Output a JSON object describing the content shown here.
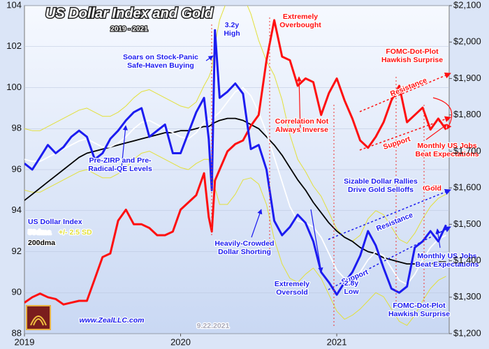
{
  "chart_data": {
    "type": "line",
    "title": "US Dollar Index and Gold",
    "subtitle": "2019 - 2021",
    "xlim": [
      2019,
      2021.72
    ],
    "xticks": [
      2019,
      2020,
      2021
    ],
    "ylim": [
      88,
      104
    ],
    "yticks": [
      88,
      90,
      92,
      94,
      96,
      98,
      100,
      102,
      104
    ],
    "y2lim": [
      1200,
      2100
    ],
    "y2ticks": [
      {
        "value": 1200,
        "label": "$1,200"
      },
      {
        "value": 1300,
        "label": "$1,300"
      },
      {
        "value": 1400,
        "label": "$1,400"
      },
      {
        "value": 1500,
        "label": "$1,500"
      },
      {
        "value": 1600,
        "label": "$1,600"
      },
      {
        "value": 1700,
        "label": "$1,700"
      },
      {
        "value": 1800,
        "label": "$1,800"
      },
      {
        "value": 1900,
        "label": "$1,900"
      },
      {
        "value": 2000,
        "label": "$2,000"
      },
      {
        "value": 2100,
        "label": "$2,100"
      }
    ],
    "x": [
      2019.0,
      2019.05,
      2019.1,
      2019.15,
      2019.2,
      2019.25,
      2019.3,
      2019.35,
      2019.4,
      2019.45,
      2019.5,
      2019.55,
      2019.6,
      2019.65,
      2019.7,
      2019.75,
      2019.8,
      2019.85,
      2019.9,
      2019.95,
      2020.0,
      2020.05,
      2020.1,
      2020.15,
      2020.18,
      2020.2,
      2020.22,
      2020.25,
      2020.3,
      2020.35,
      2020.4,
      2020.45,
      2020.5,
      2020.55,
      2020.6,
      2020.65,
      2020.7,
      2020.75,
      2020.8,
      2020.85,
      2020.9,
      2020.95,
      2021.0,
      2021.05,
      2021.1,
      2021.15,
      2021.2,
      2021.25,
      2021.3,
      2021.35,
      2021.4,
      2021.45,
      2021.5,
      2021.55,
      2021.6,
      2021.65,
      2021.7
    ],
    "series": [
      {
        "name": "+/- 2.5 SD",
        "color": "#e3e03a",
        "upper": [
          98.0,
          97.9,
          97.9,
          98.1,
          98.3,
          98.5,
          98.7,
          98.9,
          99.0,
          98.8,
          98.6,
          98.6,
          98.8,
          99.1,
          99.5,
          99.8,
          99.9,
          99.7,
          99.5,
          99.3,
          99.1,
          99.0,
          99.3,
          100.1,
          100.5,
          100.9,
          102.1,
          103.3,
          104.3,
          104.8,
          104.5,
          103.6,
          102.3,
          101.3,
          100.6,
          99.4,
          97.7,
          96.5,
          95.9,
          95.2,
          94.7,
          93.9,
          93.1,
          92.7,
          92.5,
          92.8,
          93.6,
          94.0,
          93.8,
          93.2,
          92.6,
          92.4,
          92.9,
          93.6,
          94.2,
          94.6,
          94.8
        ],
        "lower": [
          95.0,
          94.9,
          94.9,
          95.1,
          95.3,
          95.5,
          95.7,
          95.9,
          96.0,
          95.8,
          95.6,
          95.6,
          95.8,
          96.1,
          96.5,
          96.8,
          96.9,
          96.7,
          96.5,
          96.3,
          96.1,
          96.0,
          96.3,
          96.5,
          96.5,
          95.9,
          95.1,
          94.3,
          94.3,
          94.8,
          95.5,
          95.6,
          95.3,
          94.3,
          92.6,
          91.4,
          90.7,
          90.5,
          90.9,
          91.2,
          90.7,
          89.9,
          89.1,
          88.7,
          88.9,
          89.2,
          89.6,
          90.0,
          89.8,
          89.2,
          88.6,
          88.4,
          88.9,
          89.6,
          90.2,
          90.6,
          90.8
        ]
      },
      {
        "name": "200dma",
        "color": "#000000",
        "values": [
          94.5,
          94.8,
          95.1,
          95.4,
          95.7,
          96.0,
          96.3,
          96.6,
          96.8,
          96.9,
          97.0,
          97.1,
          97.2,
          97.3,
          97.4,
          97.5,
          97.6,
          97.7,
          97.8,
          97.8,
          97.9,
          97.9,
          98.0,
          98.1,
          98.1,
          98.2,
          98.3,
          98.4,
          98.5,
          98.5,
          98.4,
          98.2,
          98.0,
          97.6,
          97.2,
          96.7,
          96.1,
          95.5,
          95.0,
          94.4,
          93.9,
          93.4,
          93.0,
          92.7,
          92.5,
          92.2,
          92.0,
          91.9,
          91.7,
          91.6,
          91.5,
          91.4,
          91.4,
          91.4,
          91.4,
          91.5,
          91.5
        ]
      },
      {
        "name": "50dma",
        "color": "#ffffff",
        "values": [
          96.5,
          96.4,
          96.4,
          96.6,
          96.8,
          97.0,
          97.2,
          97.4,
          97.5,
          97.3,
          97.1,
          97.1,
          97.3,
          97.6,
          98.0,
          98.3,
          98.4,
          98.2,
          98.0,
          97.8,
          97.6,
          97.5,
          97.8,
          98.3,
          98.5,
          98.4,
          98.6,
          98.8,
          99.3,
          99.8,
          100.0,
          99.6,
          98.8,
          97.8,
          96.6,
          95.4,
          94.2,
          93.5,
          93.4,
          93.2,
          92.7,
          91.9,
          91.1,
          90.7,
          90.7,
          91.0,
          91.6,
          92.0,
          91.8,
          91.2,
          90.6,
          90.4,
          90.9,
          91.6,
          92.2,
          92.6,
          92.8
        ]
      },
      {
        "name": "Gold",
        "color": "#ff1010",
        "axis": "y2",
        "values": [
          1285,
          1300,
          1310,
          1300,
          1295,
          1280,
          1285,
          1290,
          1290,
          1350,
          1410,
          1420,
          1510,
          1540,
          1500,
          1500,
          1490,
          1470,
          1470,
          1480,
          1540,
          1560,
          1580,
          1640,
          1520,
          1480,
          1620,
          1650,
          1700,
          1720,
          1730,
          1770,
          1800,
          1950,
          2060,
          1960,
          1950,
          1880,
          1900,
          1890,
          1800,
          1860,
          1900,
          1840,
          1790,
          1730,
          1710,
          1740,
          1780,
          1840,
          1880,
          1780,
          1800,
          1820,
          1760,
          1790,
          1760
        ]
      },
      {
        "name": "US Dollar Index",
        "color": "#1c1cf0",
        "values": [
          96.3,
          96.0,
          96.6,
          97.2,
          96.8,
          97.1,
          97.6,
          97.9,
          97.6,
          96.5,
          96.8,
          97.5,
          97.9,
          98.4,
          98.8,
          99.0,
          97.6,
          97.9,
          98.2,
          96.8,
          96.8,
          97.8,
          98.8,
          99.5,
          97.5,
          95.0,
          102.8,
          99.5,
          99.8,
          100.2,
          99.7,
          97.0,
          97.2,
          96.0,
          93.5,
          92.8,
          93.2,
          93.8,
          93.4,
          92.5,
          91.0,
          90.5,
          89.9,
          90.5,
          91.0,
          91.8,
          93.0,
          92.3,
          91.2,
          90.2,
          90.0,
          90.3,
          92.2,
          92.5,
          93.0,
          92.5,
          93.3
        ]
      }
    ],
    "annotations": [
      {
        "lines": [
          "3.2y",
          "High"
        ]
      },
      {
        "lines": [
          "Extremely",
          "Overbought"
        ]
      },
      {
        "lines": [
          "Soars on Stock-Panic",
          "Safe-Haven Buying"
        ]
      },
      {
        "lines": [
          "FOMC-Dot-Plot",
          "Hawkish Surprise"
        ]
      },
      {
        "lines": [
          "Resistance"
        ]
      },
      {
        "lines": [
          "Correlation Not",
          "Always Inverse"
        ]
      },
      {
        "lines": [
          "Support"
        ]
      },
      {
        "lines": [
          "Monthly US Jobs",
          "Beat Expectations"
        ]
      },
      {
        "lines": [
          "Sizable Dollar Rallies",
          "Drive Gold Selloffs"
        ]
      },
      {
        "lines": [
          "Pre-ZIRP and Pre-",
          "Radical-QE Levels"
        ]
      },
      {
        "lines": [
          "Gold"
        ]
      },
      {
        "lines": [
          "Resistance"
        ]
      },
      {
        "lines": [
          "Heavily-Crowded",
          "Dollar Shorting"
        ]
      },
      {
        "lines": [
          "Support"
        ]
      },
      {
        "lines": [
          "Monthly US Jobs",
          "Beat Expectations"
        ]
      },
      {
        "lines": [
          "Extremely",
          "Oversold"
        ]
      },
      {
        "lines": [
          "2.8y",
          "Low"
        ]
      },
      {
        "lines": [
          "FOMC-Dot-Plot",
          "Hawkish Surprise"
        ]
      },
      {
        "lines": [
          "9.22.2021"
        ]
      },
      {
        "lines": [
          "www.ZealLLC.com"
        ]
      }
    ]
  }
}
